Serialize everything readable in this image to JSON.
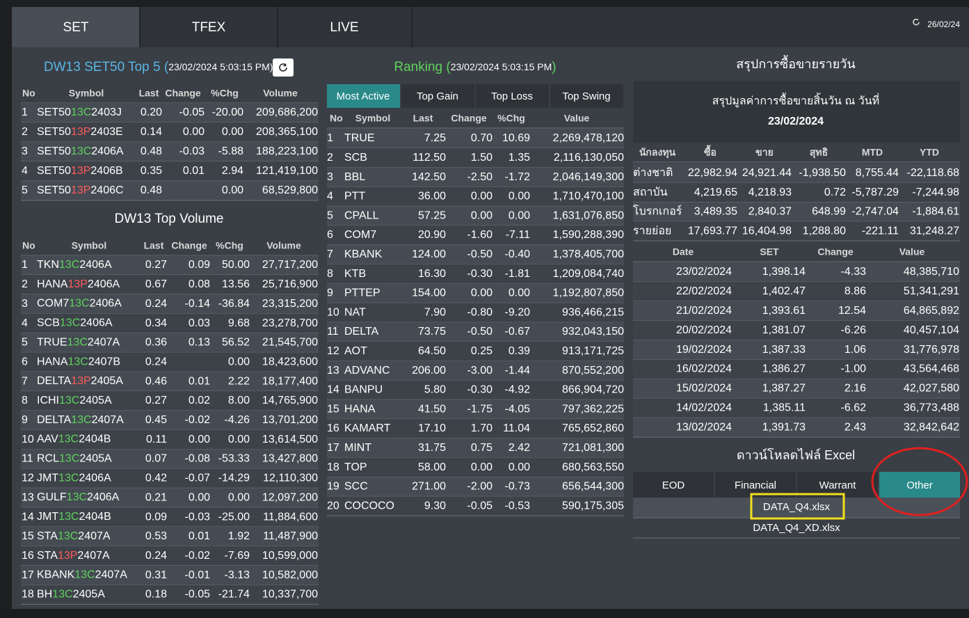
{
  "tabs": [
    "SET",
    "TFEX",
    "LIVE"
  ],
  "updated": "26/02/24",
  "top5": {
    "title": "DW13 SET50 Top 5 (",
    "time": "23/02/2024 5:03:15 PM)",
    "headers": [
      "No",
      "Symbol",
      "Last",
      "Change",
      "%Chg",
      "Volume"
    ],
    "rows": [
      [
        "1",
        [
          "SET50",
          "13C",
          "2403J"
        ],
        "0.20",
        "-0.05",
        "-20.00",
        "209,686,200"
      ],
      [
        "2",
        [
          "SET50",
          "13P",
          "2403E"
        ],
        "0.14",
        "0.00",
        "0.00",
        "208,365,100"
      ],
      [
        "3",
        [
          "SET50",
          "13C",
          "2406A"
        ],
        "0.48",
        "-0.03",
        "-5.88",
        "188,223,100"
      ],
      [
        "4",
        [
          "SET50",
          "13P",
          "2406B"
        ],
        "0.35",
        "0.01",
        "2.94",
        "121,419,100"
      ],
      [
        "5",
        [
          "SET50",
          "13P",
          "2406C"
        ],
        "0.48",
        null,
        "0.00",
        "68,529,800"
      ]
    ]
  },
  "top_volume": {
    "title": "DW13 Top Volume",
    "headers": [
      "No",
      "Symbol",
      "Last",
      "Change",
      "%Chg",
      "Volume"
    ],
    "rows": [
      [
        "1",
        [
          "TKN",
          "13C",
          "2406A"
        ],
        "0.27",
        "0.09",
        "50.00",
        "27,717,200"
      ],
      [
        "2",
        [
          "HANA",
          "13P",
          "2406A"
        ],
        "0.67",
        "0.08",
        "13.56",
        "25,716,900"
      ],
      [
        "3",
        [
          "COM7",
          "13C",
          "2406A"
        ],
        "0.24",
        "-0.14",
        "-36.84",
        "23,315,200"
      ],
      [
        "4",
        [
          "SCB",
          "13C",
          "2406A"
        ],
        "0.34",
        "0.03",
        "9.68",
        "23,278,700"
      ],
      [
        "5",
        [
          "TRUE",
          "13C",
          "2407A"
        ],
        "0.36",
        "0.13",
        "56.52",
        "21,545,700"
      ],
      [
        "6",
        [
          "HANA",
          "13C",
          "2407B"
        ],
        "0.24",
        null,
        "0.00",
        "18,423,600"
      ],
      [
        "7",
        [
          "DELTA",
          "13P",
          "2405A"
        ],
        "0.46",
        "0.01",
        "2.22",
        "18,177,400"
      ],
      [
        "8",
        [
          "ICHI",
          "13C",
          "2405A"
        ],
        "0.27",
        "0.02",
        "8.00",
        "14,765,900"
      ],
      [
        "9",
        [
          "DELTA",
          "13C",
          "2407A"
        ],
        "0.45",
        "-0.02",
        "-4.26",
        "13,701,200"
      ],
      [
        "10",
        [
          "AAV",
          "13C",
          "2404B"
        ],
        "0.11",
        "0.00",
        "0.00",
        "13,614,500"
      ],
      [
        "11",
        [
          "RCL",
          "13C",
          "2405A"
        ],
        "0.07",
        "-0.08",
        "-53.33",
        "13,427,800"
      ],
      [
        "12",
        [
          "JMT",
          "13C",
          "2406A"
        ],
        "0.42",
        "-0.07",
        "-14.29",
        "12,110,300"
      ],
      [
        "13",
        [
          "GULF",
          "13C",
          "2406A"
        ],
        "0.21",
        "0.00",
        "0.00",
        "12,097,200"
      ],
      [
        "14",
        [
          "JMT",
          "13C",
          "2404B"
        ],
        "0.09",
        "-0.03",
        "-25.00",
        "11,884,600"
      ],
      [
        "15",
        [
          "STA",
          "13C",
          "2407A"
        ],
        "0.53",
        "0.01",
        "1.92",
        "11,487,900"
      ],
      [
        "16",
        [
          "STA",
          "13P",
          "2407A"
        ],
        "0.24",
        "-0.02",
        "-7.69",
        "10,599,000"
      ],
      [
        "17",
        [
          "KBANK",
          "13C",
          "2407A"
        ],
        "0.31",
        "-0.01",
        "-3.13",
        "10,582,000"
      ],
      [
        "18",
        [
          "BH",
          "13C",
          "2405A"
        ],
        "0.18",
        "-0.05",
        "-21.74",
        "10,337,700"
      ]
    ]
  },
  "ranking": {
    "title": "Ranking (",
    "time": "23/02/2024 5:03:15 PM",
    "close": ")",
    "tabs": [
      "Most Active",
      "Top Gain",
      "Top Loss",
      "Top Swing"
    ],
    "headers": [
      "No",
      "Symbol",
      "Last",
      "Change",
      "%Chg",
      "Value"
    ],
    "rows": [
      [
        "1",
        "TRUE",
        "7.25",
        "0.70",
        "10.69",
        "2,269,478,120"
      ],
      [
        "2",
        "SCB",
        "112.50",
        "1.50",
        "1.35",
        "2,116,130,050"
      ],
      [
        "3",
        "BBL",
        "142.50",
        "-2.50",
        "-1.72",
        "2,046,149,300"
      ],
      [
        "4",
        "PTT",
        "36.00",
        "0.00",
        "0.00",
        "1,710,470,100"
      ],
      [
        "5",
        "CPALL",
        "57.25",
        "0.00",
        "0.00",
        "1,631,076,850"
      ],
      [
        "6",
        "COM7",
        "20.90",
        "-1.60",
        "-7.11",
        "1,590,288,390"
      ],
      [
        "7",
        "KBANK",
        "124.00",
        "-0.50",
        "-0.40",
        "1,378,405,700"
      ],
      [
        "8",
        "KTB",
        "16.30",
        "-0.30",
        "-1.81",
        "1,209,084,740"
      ],
      [
        "9",
        "PTTEP",
        "154.00",
        "0.00",
        "0.00",
        "1,192,807,850"
      ],
      [
        "10",
        "NAT",
        "7.90",
        "-0.80",
        "-9.20",
        "936,466,215"
      ],
      [
        "11",
        "DELTA",
        "73.75",
        "-0.50",
        "-0.67",
        "932,043,150"
      ],
      [
        "12",
        "AOT",
        "64.50",
        "0.25",
        "0.39",
        "913,171,725"
      ],
      [
        "13",
        "ADVANC",
        "206.00",
        "-3.00",
        "-1.44",
        "870,552,200"
      ],
      [
        "14",
        "BANPU",
        "5.80",
        "-0.30",
        "-4.92",
        "866,904,720"
      ],
      [
        "15",
        "HANA",
        "41.50",
        "-1.75",
        "-4.05",
        "797,362,225"
      ],
      [
        "16",
        "KAMART",
        "17.10",
        "1.70",
        "11.04",
        "765,652,860"
      ],
      [
        "17",
        "MINT",
        "31.75",
        "0.75",
        "2.42",
        "721,081,300"
      ],
      [
        "18",
        "TOP",
        "58.00",
        "0.00",
        "0.00",
        "680,563,550"
      ],
      [
        "19",
        "SCC",
        "271.00",
        "-2.00",
        "-0.73",
        "656,544,300"
      ],
      [
        "20",
        "COCOCO",
        "9.30",
        "-0.05",
        "-0.53",
        "590,175,305"
      ]
    ]
  },
  "summary": {
    "title": "สรุปการซื้อขายรายวัน",
    "box_text": "สรุปมูลค่าการซื้อขายสิ้นวัน ณ วันที่",
    "box_date": "23/02/2024",
    "investor_headers": [
      "นักลงทุน",
      "ซื้อ",
      "ขาย",
      "สุทธิ",
      "MTD",
      "YTD"
    ],
    "investors": [
      [
        "ต่างชาติ",
        "22,982.94",
        "24,921.44",
        "-1,938.50",
        "8,755.44",
        "-22,118.68"
      ],
      [
        "สถาบัน",
        "4,219.65",
        "4,218.93",
        "0.72",
        "-5,787.29",
        "-7,244.98"
      ],
      [
        "โบรกเกอร์",
        "3,489.35",
        "2,840.37",
        "648.99",
        "-2,747.04",
        "-1,884.61"
      ],
      [
        "รายย่อย",
        "17,693.77",
        "16,404.98",
        "1,288.80",
        "-221.11",
        "31,248.27"
      ]
    ],
    "history_headers": [
      "Date",
      "SET",
      "Change",
      "Value"
    ],
    "history": [
      [
        "23/02/2024",
        "1,398.14",
        "-4.33",
        "48,385,710"
      ],
      [
        "22/02/2024",
        "1,402.47",
        "8.86",
        "51,341,291"
      ],
      [
        "21/02/2024",
        "1,393.61",
        "12.54",
        "64,865,892"
      ],
      [
        "20/02/2024",
        "1,381.07",
        "-6.26",
        "40,457,104"
      ],
      [
        "19/02/2024",
        "1,387.33",
        "1.06",
        "31,776,978"
      ],
      [
        "16/02/2024",
        "1,386.27",
        "-1.00",
        "43,564,468"
      ],
      [
        "15/02/2024",
        "1,387.27",
        "2.16",
        "42,027,580"
      ],
      [
        "14/02/2024",
        "1,385.11",
        "-6.62",
        "36,773,488"
      ],
      [
        "13/02/2024",
        "1,391.73",
        "2.43",
        "32,842,642"
      ]
    ]
  },
  "excel": {
    "title": "ดาวน์โหลดไฟล์ Excel",
    "tabs": [
      "EOD",
      "Financial",
      "Warrant",
      "Other"
    ],
    "files": [
      "DATA_Q4.xlsx",
      "DATA_Q4_XD.xlsx"
    ]
  }
}
